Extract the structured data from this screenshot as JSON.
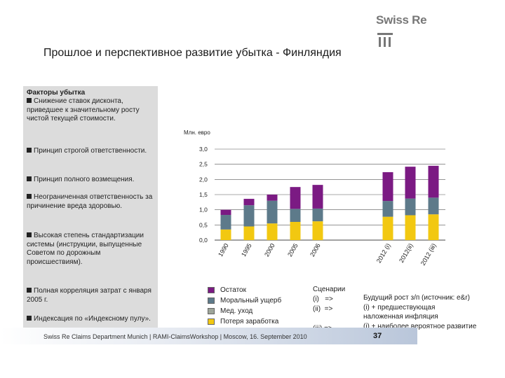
{
  "logo": {
    "text": "Swiss Re"
  },
  "title": "Прошлое и перспективное развитие убытка - Финляндия",
  "left_panel": {
    "heading": "Факторы убытка",
    "bullets": [
      "Снижение ставок дисконта, приведшее к значительному росту чистой текущей стоимости.",
      "Принцип строгой ответственности.",
      "Принцип полного возмещения.",
      "Неограниченная ответственность за причинение вреда здоровью.",
      "Высокая степень стандартизации системы (инструкции, выпущенные Советом по дорожным происшествиям).",
      "Полная корреляция затрат с января 2005 г.",
      "Индексация по «Индексному пулу»."
    ]
  },
  "colors": {
    "ostatok": "#7b1a83",
    "moral": "#5d7a8a",
    "med": "#9ea59a",
    "loss": "#f2c811"
  },
  "chart_data": {
    "type": "bar",
    "stacked": true,
    "unit_label": "Млн. евро",
    "ylim": [
      0,
      3.0
    ],
    "yticks": [
      "0,0",
      "0,5",
      "1,0",
      "1,5",
      "2,0",
      "2,5",
      "3,0"
    ],
    "categories": [
      "1990",
      "1995",
      "2000",
      "2005",
      "2006",
      "2012 (i)",
      "2012(ii)",
      "2012 (iii)"
    ],
    "series": [
      {
        "name": "Потеря заработка",
        "color_key": "loss",
        "values": [
          0.35,
          0.45,
          0.55,
          0.6,
          0.62,
          0.77,
          0.82,
          0.85
        ]
      },
      {
        "name": "Мед. уход",
        "color_key": "med",
        "values": [
          0.0,
          0.0,
          0.0,
          0.0,
          0.0,
          0.0,
          0.0,
          0.0
        ]
      },
      {
        "name": "Моральный ущерб",
        "color_key": "moral",
        "values": [
          0.48,
          0.7,
          0.75,
          0.43,
          0.42,
          0.52,
          0.55,
          0.55
        ]
      },
      {
        "name": "Остаток",
        "color_key": "ostatok",
        "values": [
          0.17,
          0.21,
          0.2,
          0.72,
          0.78,
          0.95,
          1.05,
          1.05
        ]
      }
    ]
  },
  "legend": {
    "items": [
      {
        "label": "Остаток",
        "color_key": "ostatok"
      },
      {
        "label": "Моральный ущерб",
        "color_key": "moral"
      },
      {
        "label": "Мед. уход",
        "color_key": "med"
      },
      {
        "label": "Потеря заработка",
        "color_key": "loss"
      }
    ]
  },
  "scenarios": {
    "title": "Сценарии",
    "i": "(i)   =>",
    "ii": "(ii)  =>",
    "iii": "(iii) =>"
  },
  "future": {
    "l1": "Будущий рост з/п (источник: e&r)",
    "l2": "(i) + предшествующая",
    "l3": "наложенная инфляция",
    "l4": "(i) + наиболее вероятное развитие"
  },
  "footer": {
    "text": "Swiss Re Claims Department Munich | RAMI-ClaimsWorkshop | Moscow, 16. September 2010",
    "page": "37"
  }
}
